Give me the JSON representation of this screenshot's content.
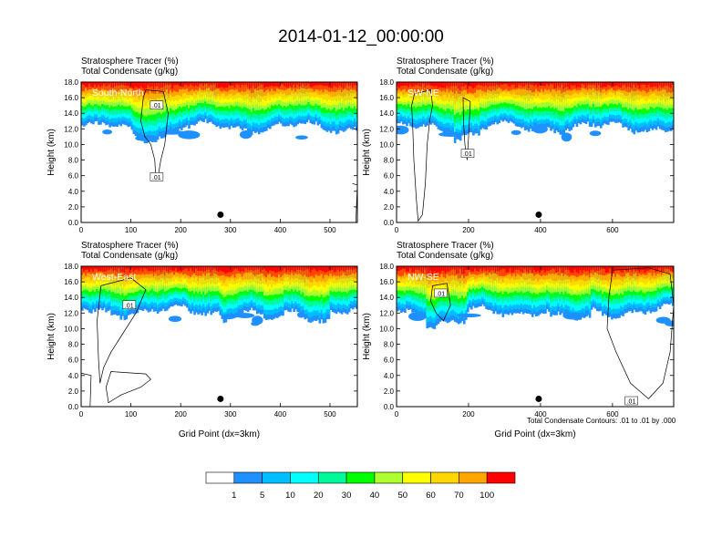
{
  "figure": {
    "title": "2014-01-12_00:00:00",
    "contour_note": "Total Condensate Contours: .01 to .01 by .000",
    "x_axis_label": "Grid Point (dx=3km)",
    "y_axis_label": "Height (km)"
  },
  "colorbar": {
    "labels": [
      "1",
      "5",
      "10",
      "20",
      "30",
      "40",
      "50",
      "60",
      "70",
      "100"
    ],
    "colors": [
      "#ffffff",
      "#1e90ff",
      "#00bfff",
      "#00ffff",
      "#00fa9a",
      "#00ff00",
      "#adff2f",
      "#ffff00",
      "#ffd700",
      "#ffa500",
      "#ff4500",
      "#ff0000"
    ]
  },
  "chart_data": [
    {
      "type": "heatmap",
      "panel": "South-North",
      "title_line1": "Stratosphere Tracer   (%)",
      "title_line2": "Total Condensate   (g/kg)",
      "ylabel": "Height (km)",
      "xlabel": "",
      "xlim": [
        0,
        555
      ],
      "ylim": [
        0,
        18
      ],
      "xticks": [
        "0",
        "100",
        "200",
        "300",
        "400",
        "500"
      ],
      "yticks": [
        "0.0",
        "2.0",
        "4.0",
        "6.0",
        "8.0",
        "10.0",
        "12.0",
        "14.0",
        "16.0",
        "18.0"
      ],
      "contour_labels": [
        ".01",
        ".01"
      ],
      "marker_x": 280,
      "marker_y": 1.0
    },
    {
      "type": "heatmap",
      "panel": "SW-NE",
      "title_line1": "Stratosphere Tracer   (%)",
      "title_line2": "Total Condensate   (g/kg)",
      "ylabel": "Height (km)",
      "xlabel": "",
      "xlim": [
        0,
        770
      ],
      "ylim": [
        0,
        18
      ],
      "xticks": [
        "0",
        "200",
        "400",
        "600"
      ],
      "yticks": [
        "0.0",
        "2.0",
        "4.0",
        "6.0",
        "8.0",
        "10.0",
        "12.0",
        "14.0",
        "16.0",
        "18.0"
      ],
      "contour_labels": [
        ".01"
      ],
      "marker_x": 395,
      "marker_y": 1.0
    },
    {
      "type": "heatmap",
      "panel": "West-East",
      "title_line1": "Stratosphere Tracer   (%)",
      "title_line2": "Total Condensate   (g/kg)",
      "ylabel": "Height (km)",
      "xlabel": "Grid Point (dx=3km)",
      "xlim": [
        0,
        555
      ],
      "ylim": [
        0,
        18
      ],
      "xticks": [
        "0",
        "100",
        "200",
        "300",
        "400",
        "500"
      ],
      "yticks": [
        "0.0",
        "2.0",
        "4.0",
        "6.0",
        "8.0",
        "10.0",
        "12.0",
        "14.0",
        "16.0",
        "18.0"
      ],
      "contour_labels": [
        ".01"
      ],
      "marker_x": 280,
      "marker_y": 1.0
    },
    {
      "type": "heatmap",
      "panel": "NW-SE",
      "title_line1": "Stratosphere Tracer   (%)",
      "title_line2": "Total Condensate   (g/kg)",
      "ylabel": "Height (km)",
      "xlabel": "Grid Point (dx=3km)",
      "xlim": [
        0,
        770
      ],
      "ylim": [
        0,
        18
      ],
      "xticks": [
        "0",
        "200",
        "400",
        "600"
      ],
      "yticks": [
        "0.0",
        "2.0",
        "4.0",
        "6.0",
        "8.0",
        "10.0",
        "12.0",
        "14.0",
        "16.0",
        "18.0"
      ],
      "contour_labels": [
        ".01",
        ".01"
      ],
      "marker_x": 395,
      "marker_y": 1.0
    }
  ]
}
